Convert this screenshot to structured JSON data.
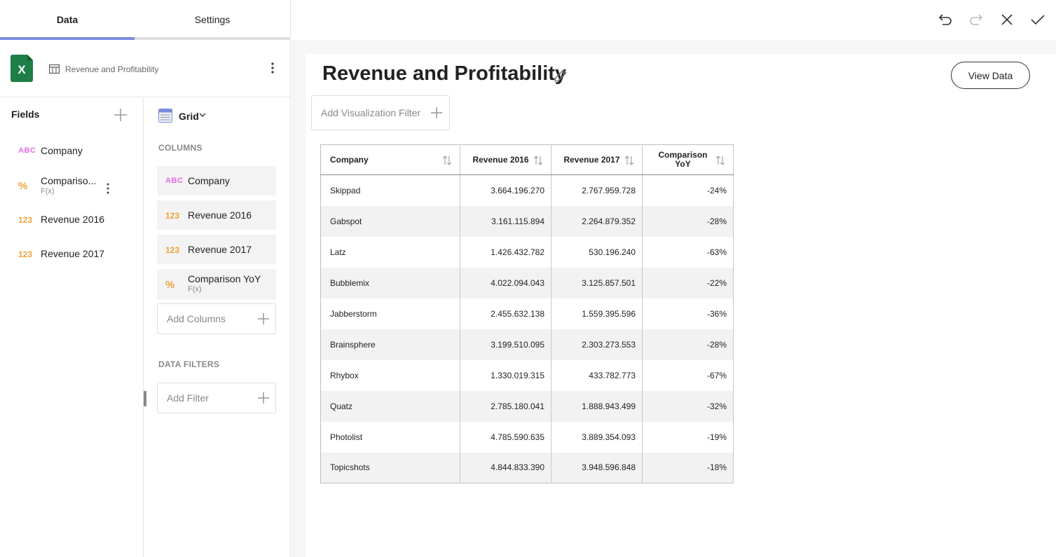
{
  "tabs": {
    "data": "Data",
    "settings": "Settings"
  },
  "datasource": {
    "name": "Revenue and Profitability",
    "icon": "excel-icon"
  },
  "fields": {
    "title": "Fields",
    "items": [
      {
        "type": "ABC",
        "label": "Company"
      },
      {
        "type": "%",
        "label": "Compariso...",
        "sub": "F(x)"
      },
      {
        "type": "123",
        "label": "Revenue 2016"
      },
      {
        "type": "123",
        "label": "Revenue 2017"
      }
    ]
  },
  "visualization": {
    "type_label": "Grid"
  },
  "columns_section": {
    "title": "COLUMNS",
    "items": [
      {
        "type": "ABC",
        "label": "Company"
      },
      {
        "type": "123",
        "label": "Revenue 2016"
      },
      {
        "type": "123",
        "label": "Revenue 2017"
      },
      {
        "type": "%",
        "label": "Comparison YoY",
        "sub": "F(x)"
      }
    ],
    "add_label": "Add Columns"
  },
  "filters_section": {
    "title": "DATA FILTERS",
    "add_label": "Add Filter"
  },
  "canvas": {
    "title": "Revenue and Profitability",
    "view_data_label": "View Data",
    "add_viz_filter_label": "Add Visualization Filter"
  },
  "grid": {
    "headers": [
      "Company",
      "Revenue 2016",
      "Revenue 2017",
      "Comparison YoY"
    ],
    "rows": [
      [
        "Skippad",
        "3.664.196.270",
        "2.767.959.728",
        "-24%"
      ],
      [
        "Gabspot",
        "3.161.115.894",
        "2.264.879.352",
        "-28%"
      ],
      [
        "Latz",
        "1.426.432.782",
        "530.196.240",
        "-63%"
      ],
      [
        "Bubblemix",
        "4.022.094.043",
        "3.125.857.501",
        "-22%"
      ],
      [
        "Jabberstorm",
        "2.455.632.138",
        "1.559.395.596",
        "-36%"
      ],
      [
        "Brainsphere",
        "3.199.510.095",
        "2.303.273.553",
        "-28%"
      ],
      [
        "Rhybox",
        "1.330.019.315",
        "433.782.773",
        "-67%"
      ],
      [
        "Quatz",
        "2.785.180.041",
        "1.888.943.499",
        "-32%"
      ],
      [
        "Photolist",
        "4.785.590.635",
        "3.889.354.093",
        "-19%"
      ],
      [
        "Topicshots",
        "4.844.833.390",
        "3.948.596.848",
        "-18%"
      ]
    ]
  },
  "colors": {
    "tab_indicator": "#7b8cde",
    "excel_green": "#1d7f45",
    "type_text": "#e86be8",
    "type_number": "#f0a13a",
    "row_alt": "#f2f2f2"
  }
}
